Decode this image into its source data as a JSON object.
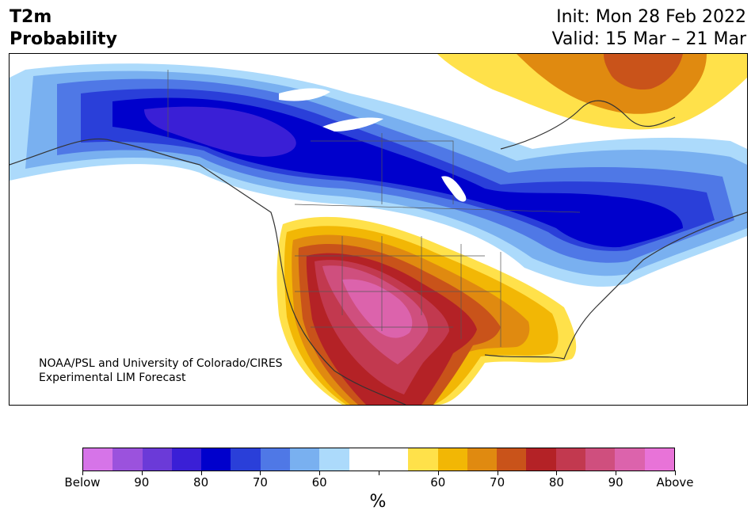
{
  "title": {
    "line1": "T2m",
    "line2": "Probability"
  },
  "dates": {
    "init": "Init: Mon 28 Feb 2022",
    "valid": "Valid: 15 Mar – 21 Mar"
  },
  "credit": {
    "line1": "NOAA/PSL and University of Colorado/CIRES",
    "line2": "Experimental LIM Forecast"
  },
  "colorbar": {
    "colors": [
      "#d674e8",
      "#9b52dd",
      "#6b3ad8",
      "#3a1fd6",
      "#0000cc",
      "#2a3fd9",
      "#4f78e6",
      "#79b0f0",
      "#acdafb",
      "#ffffff",
      "#ffffff",
      "#ffe14a",
      "#f2b705",
      "#e08a10",
      "#c9531a",
      "#b42226",
      "#c2394f",
      "#cf4f7e",
      "#dc63ac",
      "#e873d8"
    ],
    "labels": [
      "Below",
      "90",
      "80",
      "70",
      "60",
      "60",
      "70",
      "80",
      "90",
      "Above"
    ],
    "unit": "%"
  },
  "map": {
    "region": "North America"
  }
}
